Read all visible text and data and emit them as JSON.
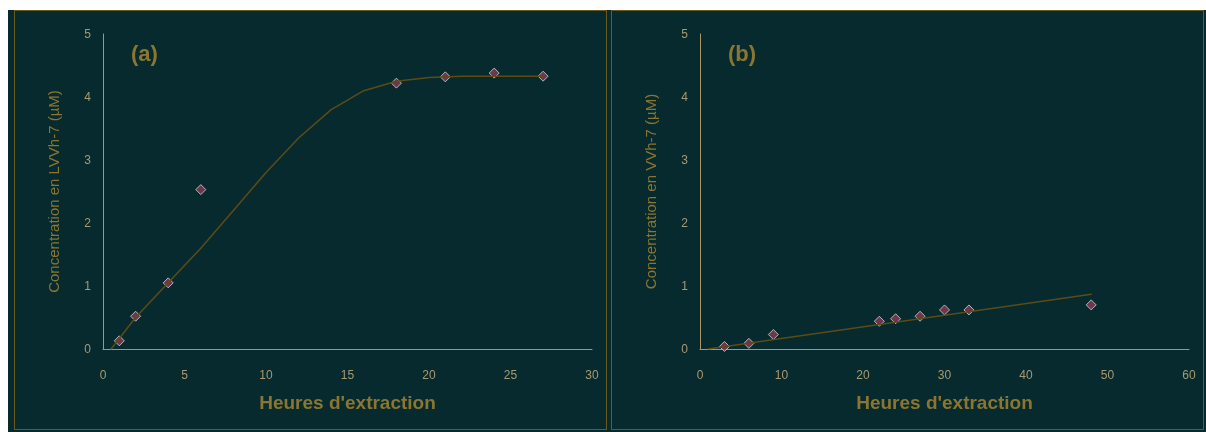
{
  "chart_data": [
    {
      "type": "scatter",
      "xlabel": "Heures d'extraction",
      "ylabel": "Concentration en LVVh-7 (µM)",
      "annotations": [
        "(a)"
      ],
      "xlim": [
        0,
        30
      ],
      "xticks": [
        0,
        5,
        10,
        15,
        20,
        25,
        30
      ],
      "ylim": [
        0,
        5
      ],
      "yticks": [
        0,
        1,
        2,
        3,
        4,
        5
      ],
      "marker": "diamond",
      "series": [
        {
          "color": "#8b3a55",
          "x": [
            1,
            2,
            4,
            6,
            18,
            21,
            24,
            27
          ],
          "values": [
            0.13,
            0.52,
            1.05,
            2.53,
            4.22,
            4.32,
            4.38,
            4.33
          ]
        },
        {
          "type": "line",
          "marker": "none",
          "line_style": "solid",
          "color": "#5c4c14",
          "x": [
            0.5,
            2,
            4,
            6,
            8,
            10,
            12,
            14,
            16,
            18,
            20,
            22,
            27
          ],
          "values": [
            0,
            0.5,
            1.05,
            1.6,
            2.2,
            2.8,
            3.35,
            3.8,
            4.1,
            4.25,
            4.31,
            4.33,
            4.33
          ]
        }
      ]
    },
    {
      "type": "scatter",
      "xlabel": "Heures d'extraction",
      "ylabel": "Concentration en VVh-7 (µM)",
      "annotations": [
        "(b)"
      ],
      "xlim": [
        0,
        60
      ],
      "xticks": [
        0,
        10,
        20,
        30,
        40,
        50,
        60
      ],
      "ylim": [
        0,
        5
      ],
      "yticks": [
        0,
        1,
        2,
        3,
        4,
        5
      ],
      "marker": "diamond",
      "series": [
        {
          "color": "#8b3a55",
          "x": [
            3,
            6,
            9,
            22,
            24,
            27,
            30,
            33,
            48
          ],
          "values": [
            0.04,
            0.09,
            0.23,
            0.44,
            0.48,
            0.52,
            0.62,
            0.62,
            0.7
          ]
        },
        {
          "type": "line",
          "marker": "none",
          "line_style": "solid",
          "color": "#5c4c14",
          "x": [
            1,
            48
          ],
          "values": [
            0,
            0.87
          ]
        }
      ]
    }
  ]
}
